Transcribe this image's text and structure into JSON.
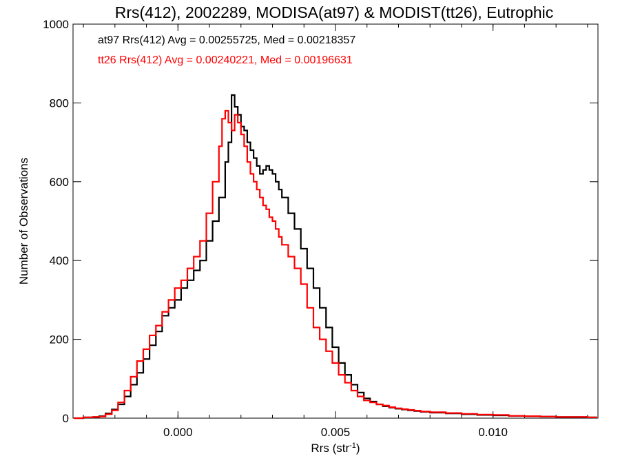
{
  "chart_data": {
    "type": "line",
    "title": "Rrs(412), 2002289, MODISA(at97) & MODIST(tt26), Eutrophic",
    "xlabel_base": "Rrs (str",
    "xlabel_sup": "-1",
    "xlabel_close": ")",
    "ylabel": "Number of Observations",
    "xlim": [
      -0.00333,
      0.01333
    ],
    "ylim": [
      0,
      1000
    ],
    "xticks": [
      0.0,
      0.005,
      0.01
    ],
    "xtick_labels": [
      "0.000",
      "0.005",
      "0.010"
    ],
    "yticks": [
      0,
      200,
      400,
      600,
      800,
      1000
    ],
    "ytick_labels": [
      "0",
      "200",
      "400",
      "600",
      "800",
      "1000"
    ],
    "grid": false,
    "series": [
      {
        "name": "at97",
        "color": "#000000",
        "annotation": "at97 Rrs(412) Avg = 0.00255725, Med = 0.00218357",
        "points": [
          [
            -0.0033,
            0
          ],
          [
            -0.003,
            2
          ],
          [
            -0.0027,
            3
          ],
          [
            -0.0025,
            5
          ],
          [
            -0.0023,
            12
          ],
          [
            -0.0021,
            22
          ],
          [
            -0.0019,
            35
          ],
          [
            -0.0017,
            55
          ],
          [
            -0.0015,
            85
          ],
          [
            -0.0013,
            115
          ],
          [
            -0.0011,
            150
          ],
          [
            -0.0009,
            185
          ],
          [
            -0.0007,
            220
          ],
          [
            -0.0005,
            260
          ],
          [
            -0.0003,
            280
          ],
          [
            -0.0001,
            300
          ],
          [
            0.0001,
            330
          ],
          [
            0.0003,
            350
          ],
          [
            0.0005,
            375
          ],
          [
            0.0007,
            400
          ],
          [
            0.0009,
            450
          ],
          [
            0.0011,
            500
          ],
          [
            0.0013,
            560
          ],
          [
            0.0015,
            650
          ],
          [
            0.0016,
            700
          ],
          [
            0.0017,
            820
          ],
          [
            0.0018,
            790
          ],
          [
            0.0019,
            770
          ],
          [
            0.002,
            740
          ],
          [
            0.0021,
            730
          ],
          [
            0.0022,
            700
          ],
          [
            0.0023,
            680
          ],
          [
            0.0024,
            660
          ],
          [
            0.0025,
            640
          ],
          [
            0.0026,
            620
          ],
          [
            0.0027,
            630
          ],
          [
            0.0028,
            640
          ],
          [
            0.0029,
            630
          ],
          [
            0.003,
            620
          ],
          [
            0.0031,
            600
          ],
          [
            0.0032,
            580
          ],
          [
            0.0033,
            560
          ],
          [
            0.0035,
            520
          ],
          [
            0.0037,
            480
          ],
          [
            0.0039,
            430
          ],
          [
            0.0041,
            380
          ],
          [
            0.0043,
            330
          ],
          [
            0.0045,
            280
          ],
          [
            0.0047,
            230
          ],
          [
            0.0049,
            180
          ],
          [
            0.0051,
            140
          ],
          [
            0.0053,
            110
          ],
          [
            0.0055,
            85
          ],
          [
            0.0057,
            65
          ],
          [
            0.0059,
            50
          ],
          [
            0.0061,
            42
          ],
          [
            0.0063,
            35
          ],
          [
            0.0065,
            30
          ],
          [
            0.0067,
            27
          ],
          [
            0.0069,
            24
          ],
          [
            0.0071,
            22
          ],
          [
            0.0073,
            20
          ],
          [
            0.0075,
            18
          ],
          [
            0.0077,
            16
          ],
          [
            0.008,
            14
          ],
          [
            0.0085,
            12
          ],
          [
            0.009,
            10
          ],
          [
            0.0095,
            8
          ],
          [
            0.01,
            7
          ],
          [
            0.0105,
            6
          ],
          [
            0.011,
            5
          ],
          [
            0.0115,
            4
          ],
          [
            0.012,
            3
          ],
          [
            0.0125,
            3
          ],
          [
            0.013,
            2
          ],
          [
            0.0133,
            2
          ]
        ]
      },
      {
        "name": "tt26",
        "color": "#ff0000",
        "annotation": "tt26 Rrs(412) Avg = 0.00240221, Med = 0.00196631",
        "points": [
          [
            -0.0033,
            0
          ],
          [
            -0.003,
            2
          ],
          [
            -0.0027,
            3
          ],
          [
            -0.0025,
            4
          ],
          [
            -0.0023,
            10
          ],
          [
            -0.0021,
            20
          ],
          [
            -0.0019,
            40
          ],
          [
            -0.0017,
            70
          ],
          [
            -0.0015,
            105
          ],
          [
            -0.0013,
            145
          ],
          [
            -0.0011,
            175
          ],
          [
            -0.0009,
            210
          ],
          [
            -0.0007,
            235
          ],
          [
            -0.0005,
            270
          ],
          [
            -0.0003,
            300
          ],
          [
            -0.0001,
            330
          ],
          [
            0.0001,
            350
          ],
          [
            0.0003,
            380
          ],
          [
            0.0005,
            410
          ],
          [
            0.0007,
            450
          ],
          [
            0.0009,
            520
          ],
          [
            0.0011,
            600
          ],
          [
            0.0013,
            690
          ],
          [
            0.0014,
            760
          ],
          [
            0.0015,
            780
          ],
          [
            0.0016,
            750
          ],
          [
            0.0017,
            730
          ],
          [
            0.0018,
            770
          ],
          [
            0.0019,
            750
          ],
          [
            0.002,
            720
          ],
          [
            0.0021,
            690
          ],
          [
            0.0022,
            650
          ],
          [
            0.0023,
            620
          ],
          [
            0.0024,
            600
          ],
          [
            0.0025,
            580
          ],
          [
            0.0026,
            560
          ],
          [
            0.0027,
            540
          ],
          [
            0.0028,
            530
          ],
          [
            0.0029,
            510
          ],
          [
            0.003,
            500
          ],
          [
            0.0031,
            480
          ],
          [
            0.0032,
            460
          ],
          [
            0.0033,
            440
          ],
          [
            0.0035,
            410
          ],
          [
            0.0037,
            380
          ],
          [
            0.0039,
            340
          ],
          [
            0.0041,
            280
          ],
          [
            0.0043,
            230
          ],
          [
            0.0045,
            200
          ],
          [
            0.0047,
            170
          ],
          [
            0.0049,
            140
          ],
          [
            0.0051,
            110
          ],
          [
            0.0053,
            90
          ],
          [
            0.0055,
            70
          ],
          [
            0.0057,
            55
          ],
          [
            0.0059,
            45
          ],
          [
            0.0061,
            40
          ],
          [
            0.0063,
            35
          ],
          [
            0.0065,
            32
          ],
          [
            0.0067,
            28
          ],
          [
            0.0069,
            25
          ],
          [
            0.0071,
            23
          ],
          [
            0.0073,
            21
          ],
          [
            0.0075,
            19
          ],
          [
            0.0077,
            17
          ],
          [
            0.008,
            15
          ],
          [
            0.0085,
            13
          ],
          [
            0.009,
            11
          ],
          [
            0.0095,
            9
          ],
          [
            0.01,
            8
          ],
          [
            0.0105,
            6
          ],
          [
            0.011,
            5
          ],
          [
            0.0115,
            4
          ],
          [
            0.012,
            3
          ],
          [
            0.0125,
            3
          ],
          [
            0.013,
            2
          ],
          [
            0.0133,
            2
          ]
        ]
      }
    ]
  }
}
